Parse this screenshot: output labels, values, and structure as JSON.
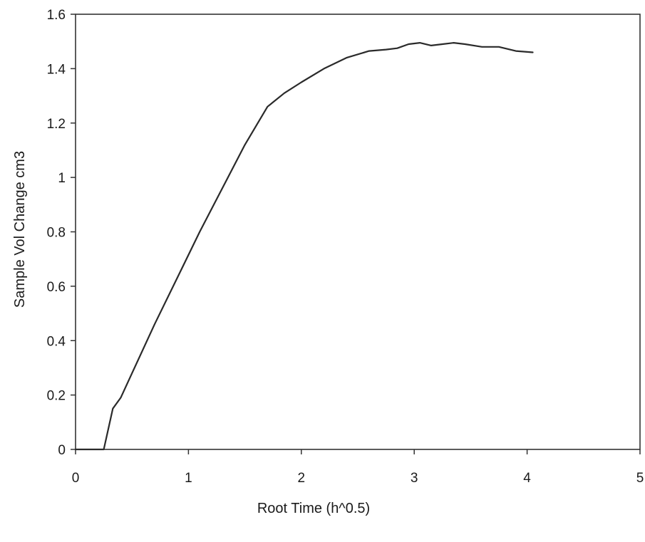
{
  "chart_data": {
    "type": "line",
    "title": "",
    "xlabel": "Root Time (h^0.5)",
    "ylabel": "Sample Vol Change cm3",
    "xlim": [
      0,
      5
    ],
    "ylim": [
      0,
      1.6
    ],
    "x_ticks": [
      0,
      1,
      2,
      3,
      4,
      5
    ],
    "y_ticks": [
      0,
      0.2,
      0.4,
      0.6,
      0.8,
      1,
      1.2,
      1.4,
      1.6
    ],
    "x_tick_labels": [
      "0",
      "1",
      "2",
      "3",
      "4",
      "5"
    ],
    "y_tick_labels": [
      "0",
      "0.2",
      "0.4",
      "0.6",
      "0.8",
      "1",
      "1.2",
      "1.4",
      "1.6"
    ],
    "grid": false,
    "legend": "none",
    "line_color": "#2a2a2a",
    "series": [
      {
        "x": [
          0,
          0.25,
          0.33,
          0.4,
          0.5,
          0.7,
          0.9,
          1.1,
          1.3,
          1.5,
          1.7,
          1.85,
          2.0,
          2.2,
          2.4,
          2.6,
          2.75,
          2.85,
          2.95,
          3.05,
          3.15,
          3.25,
          3.35,
          3.45,
          3.6,
          3.75,
          3.9,
          4.05
        ],
        "y": [
          0,
          0,
          0.15,
          0.19,
          0.28,
          0.46,
          0.63,
          0.8,
          0.96,
          1.12,
          1.26,
          1.31,
          1.35,
          1.4,
          1.44,
          1.465,
          1.47,
          1.475,
          1.49,
          1.495,
          1.485,
          1.49,
          1.495,
          1.49,
          1.48,
          1.48,
          1.465,
          1.46
        ]
      }
    ]
  }
}
